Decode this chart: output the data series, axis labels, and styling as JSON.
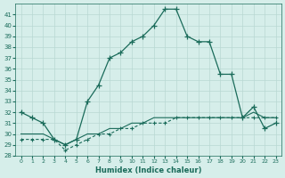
{
  "xlabel": "Humidex (Indice chaleur)",
  "bg_color": "#d6eeea",
  "grid_color": "#b8d8d2",
  "line_color": "#1a6b5a",
  "xlim": [
    -0.5,
    23.5
  ],
  "ylim": [
    28,
    42
  ],
  "yticks": [
    28,
    29,
    30,
    31,
    32,
    33,
    34,
    35,
    36,
    37,
    38,
    39,
    40,
    41
  ],
  "xticks": [
    0,
    1,
    2,
    3,
    4,
    5,
    6,
    7,
    8,
    9,
    10,
    11,
    12,
    13,
    14,
    15,
    16,
    17,
    18,
    19,
    20,
    21,
    22,
    23
  ],
  "series1": [
    32,
    31.5,
    31,
    29.5,
    29,
    29.5,
    33,
    34.5,
    37,
    37.5,
    38.5,
    39,
    40,
    41.5,
    41.5,
    39,
    38.5,
    38.5,
    35.5,
    35.5,
    31.5,
    32.5,
    30.5,
    31
  ],
  "series2_line": [
    29.5,
    29.5,
    29.5,
    29.5,
    28.5,
    29,
    29.5,
    30,
    30,
    30.5,
    30.5,
    31,
    31,
    31,
    31.5,
    31.5,
    31.5,
    31.5,
    31.5,
    31.5,
    31.5,
    31.5,
    31.5,
    31.5
  ],
  "series3_line": [
    30,
    30,
    30,
    29.5,
    29,
    29.5,
    30,
    30,
    30.5,
    30.5,
    31,
    31,
    31.5,
    31.5,
    31.5,
    31.5,
    31.5,
    31.5,
    31.5,
    31.5,
    31.5,
    32,
    31.5,
    31.5
  ],
  "series1_markers": [
    0,
    1,
    2,
    3,
    4,
    5,
    6,
    7,
    8,
    9,
    10,
    11,
    12,
    13,
    14,
    15,
    16,
    17,
    18,
    19,
    20,
    21,
    22,
    23
  ],
  "series2_markers": [
    0,
    1,
    2,
    3,
    4,
    5,
    6,
    7,
    8,
    9,
    10,
    11,
    12,
    13,
    14,
    15,
    16,
    17,
    18,
    19,
    20,
    21,
    22,
    23
  ]
}
